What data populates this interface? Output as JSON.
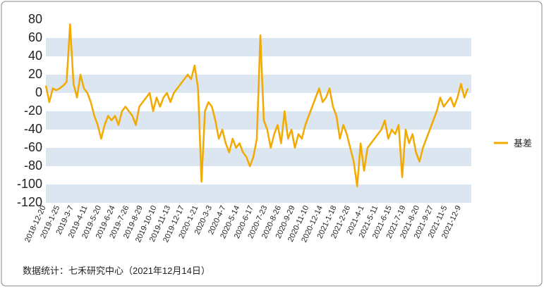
{
  "chart_data": {
    "type": "line",
    "categories": [
      "2018-12-20",
      null,
      null,
      null,
      "2019-1-25",
      null,
      null,
      null,
      "2019-3-7",
      null,
      null,
      null,
      "2019-4-11",
      null,
      null,
      null,
      "2019-5-20",
      null,
      null,
      null,
      "2019-6-24",
      null,
      null,
      null,
      "2019-7-26",
      null,
      null,
      null,
      "2019-8-29",
      null,
      null,
      null,
      "2019-10-10",
      null,
      null,
      null,
      "2019-11-13",
      null,
      null,
      null,
      "2019-12-17",
      null,
      null,
      null,
      "2020-1-21",
      null,
      null,
      null,
      "2020-3-3",
      null,
      null,
      null,
      "2020-4-7",
      null,
      null,
      null,
      "2020-5-14",
      null,
      null,
      null,
      "2020-6-17",
      null,
      null,
      null,
      "2020-7-23",
      null,
      null,
      null,
      "2020-8-26",
      null,
      null,
      null,
      "2020-9-29",
      null,
      null,
      null,
      "2020-11-10",
      null,
      null,
      null,
      "2020-12-14",
      null,
      null,
      null,
      "2021-1-18",
      null,
      null,
      null,
      "2021-2-26",
      null,
      null,
      null,
      "2021-4-1",
      null,
      null,
      null,
      "2021-5-11",
      null,
      null,
      null,
      "2021-6-15",
      null,
      null,
      null,
      "2021-7-19",
      null,
      null,
      null,
      "2021-8-20",
      null,
      null,
      null,
      "2021-9-27",
      null,
      null,
      null,
      "2021-11-5",
      null,
      null,
      null,
      "2021-12-9",
      null,
      null
    ],
    "series": [
      {
        "name": "基差",
        "color": "#f2a900",
        "values": [
          8,
          -10,
          5,
          3,
          5,
          8,
          12,
          75,
          10,
          -5,
          20,
          5,
          0,
          -10,
          -25,
          -35,
          -50,
          -35,
          -25,
          -30,
          -25,
          -35,
          -20,
          -15,
          -20,
          -25,
          -35,
          -15,
          -10,
          -5,
          0,
          -20,
          -5,
          -15,
          -5,
          0,
          -10,
          0,
          5,
          10,
          15,
          20,
          15,
          30,
          5,
          -97,
          -20,
          -10,
          -15,
          -30,
          -50,
          -40,
          -55,
          -65,
          -50,
          -60,
          -55,
          -65,
          -70,
          -80,
          -70,
          -50,
          63,
          -30,
          -40,
          -60,
          -45,
          -35,
          -55,
          -20,
          -50,
          -40,
          -60,
          -45,
          -50,
          -35,
          -25,
          -15,
          -5,
          5,
          -10,
          -5,
          5,
          -15,
          -25,
          -50,
          -35,
          -45,
          -60,
          -75,
          -102,
          -55,
          -85,
          -60,
          -55,
          -50,
          -45,
          -40,
          -30,
          -50,
          -40,
          -45,
          -35,
          -92,
          -40,
          -55,
          -45,
          -65,
          -75,
          -60,
          -50,
          -40,
          -30,
          -20,
          -5,
          -15,
          -10,
          -5,
          -15,
          -5,
          10,
          -5,
          5
        ]
      }
    ],
    "ylim": [
      -120,
      80
    ],
    "yticks": [
      -120,
      -100,
      -80,
      -60,
      -40,
      -20,
      0,
      20,
      40,
      60,
      80
    ],
    "grid": "bands",
    "band_color": "#dce6f0",
    "legend": "right",
    "source": "数据统计：七禾研究中心（2021年12月14日）"
  }
}
